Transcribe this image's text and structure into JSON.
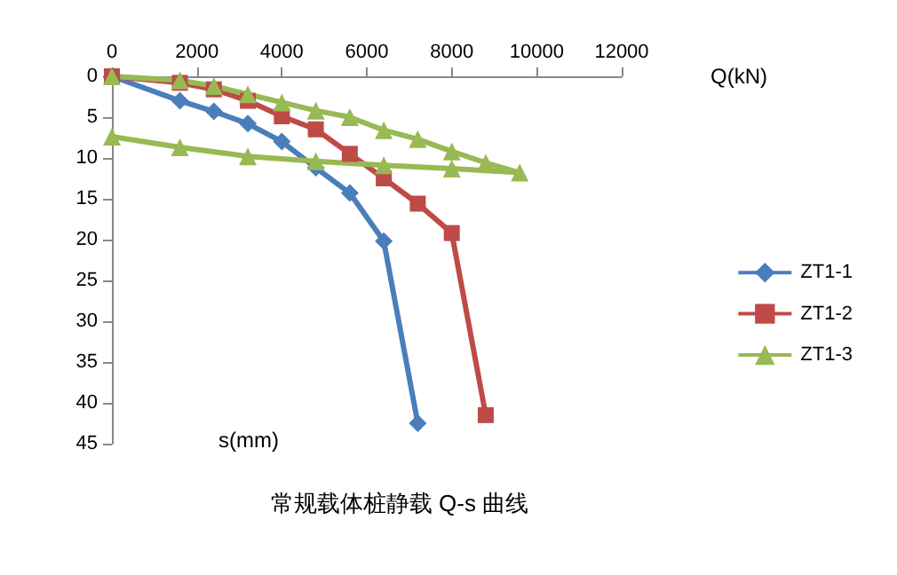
{
  "chart_data": {
    "type": "line",
    "title": "常规载体桩静载 Q-s 曲线",
    "xlabel": "Q(kN)",
    "ylabel": "s(mm)",
    "xlim": [
      0,
      12000
    ],
    "xticks": [
      0,
      2000,
      4000,
      6000,
      8000,
      10000,
      12000
    ],
    "ylim": [
      45,
      0
    ],
    "yticks": [
      0,
      5,
      10,
      15,
      20,
      25,
      30,
      35,
      40,
      45
    ],
    "grid": false,
    "legend": "right",
    "series": [
      {
        "name": "ZT1-1",
        "color": "#4a7ebb",
        "marker": "diamond",
        "x": [
          0,
          1600,
          2400,
          3200,
          4000,
          4800,
          5600,
          6400,
          7200
        ],
        "values": [
          0,
          3,
          4.3,
          5.8,
          8,
          11.2,
          14.3,
          20.2,
          42.5
        ]
      },
      {
        "name": "ZT1-2",
        "color": "#be4b48",
        "marker": "square",
        "x": [
          0,
          1600,
          2400,
          3200,
          4000,
          4800,
          5600,
          6400,
          7200,
          8000,
          8800
        ],
        "values": [
          0,
          0.8,
          1.6,
          3,
          4.9,
          6.5,
          9.5,
          12.5,
          15.6,
          19.2,
          41.5
        ]
      },
      {
        "name": "ZT1-3",
        "color": "#98b954",
        "marker": "triangle",
        "x": [
          0,
          1600,
          2400,
          3200,
          4000,
          4800,
          5600,
          6400,
          7200,
          8000,
          8800,
          9600,
          8000,
          6400,
          4800,
          3200,
          1600,
          0
        ],
        "values": [
          0,
          0.5,
          1.2,
          2.2,
          3.2,
          4.2,
          5,
          6.6,
          7.7,
          9.2,
          10.6,
          11.8,
          11.3,
          10.9,
          10.4,
          9.8,
          8.7,
          7.4
        ]
      }
    ]
  }
}
